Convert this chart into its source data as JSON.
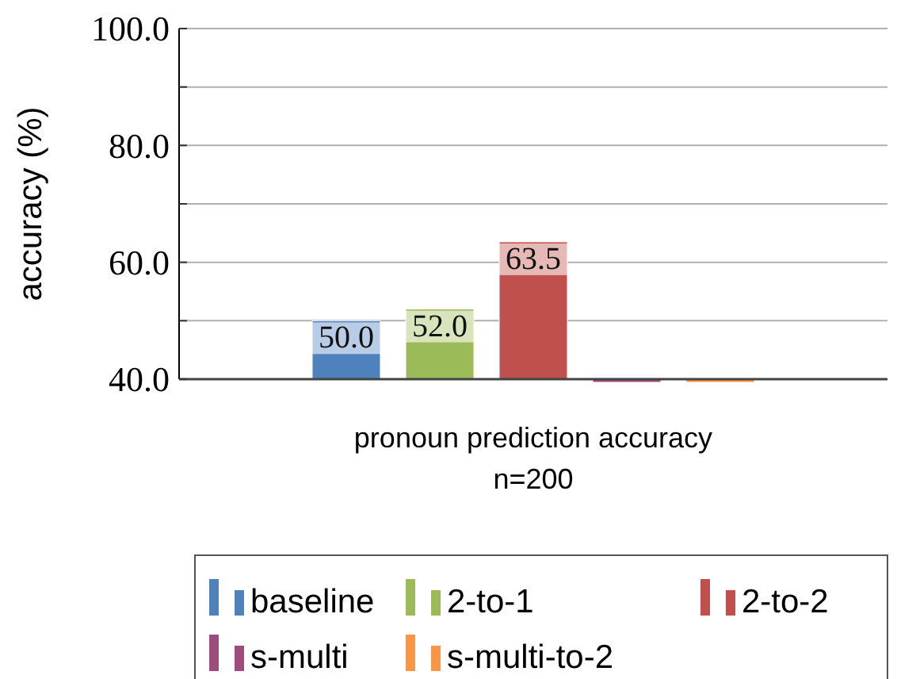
{
  "chart_data": {
    "type": "bar",
    "ylabel": "accuracy (%)",
    "categories": [
      "pronoun prediction accuracy\nn=200"
    ],
    "series": [
      {
        "name": "baseline",
        "color": "#4f81bd",
        "values": [
          50.0
        ],
        "value_labels": [
          "50.0"
        ]
      },
      {
        "name": "2-to-1",
        "color": "#9bbb59",
        "values": [
          52.0
        ],
        "value_labels": [
          "52.0"
        ]
      },
      {
        "name": "2-to-2",
        "color": "#c0504d",
        "values": [
          63.5
        ],
        "value_labels": [
          "63.5"
        ]
      },
      {
        "name": "s-multi",
        "color": "#9f4c7c",
        "values": [
          40.0
        ],
        "value_labels": [
          null
        ]
      },
      {
        "name": "s-multi-to-2",
        "color": "#f79646",
        "values": [
          40.0
        ],
        "value_labels": [
          null
        ]
      }
    ],
    "ylim": [
      40,
      100
    ],
    "yticks": [
      {
        "value": 40,
        "label": "40.0"
      },
      {
        "value": 50,
        "label": null
      },
      {
        "value": 60,
        "label": "60.0"
      },
      {
        "value": 70,
        "label": null
      },
      {
        "value": 80,
        "label": "80.0"
      },
      {
        "value": 90,
        "label": null
      },
      {
        "value": 100,
        "label": "100.0"
      }
    ],
    "grid": "y",
    "legend": "bottom"
  }
}
